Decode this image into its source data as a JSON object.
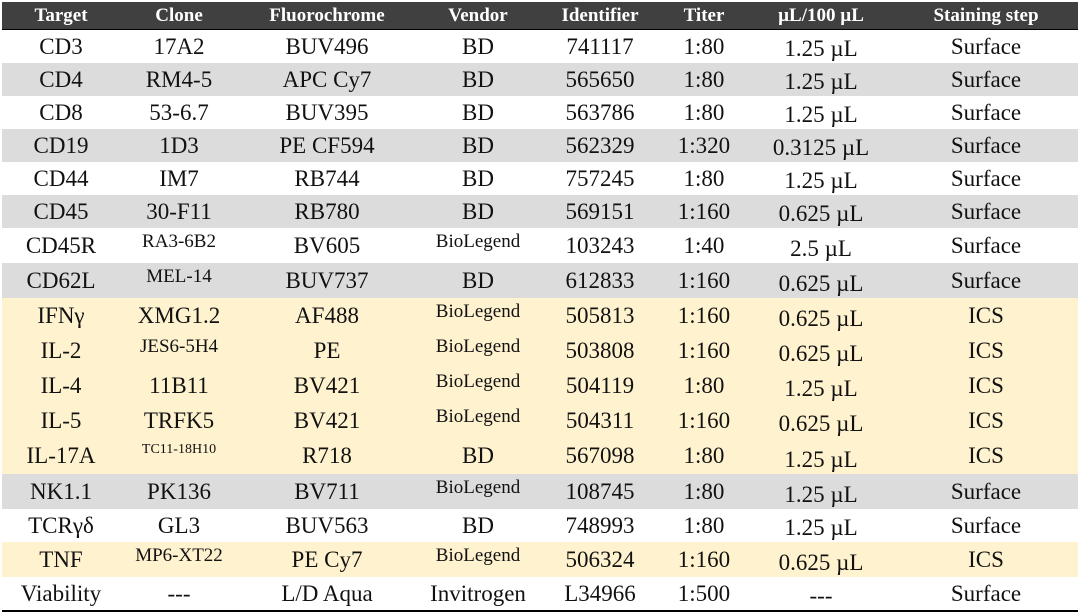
{
  "headers": [
    "Target",
    "Clone",
    "Fluorochrome",
    "Vendor",
    "Identifier",
    "Titer",
    "µL/100 µL",
    "Staining step"
  ],
  "rows": [
    {
      "bg": "white",
      "cells": [
        "CD3",
        "17A2",
        "BUV496",
        "BD",
        "741117",
        "1:80",
        "1.25 µL",
        "Surface"
      ]
    },
    {
      "bg": "grey",
      "cells": [
        "CD4",
        "RM4-5",
        "APC Cy7",
        "BD",
        "565650",
        "1:80",
        "1.25 µL",
        "Surface"
      ]
    },
    {
      "bg": "white",
      "cells": [
        "CD8",
        "53-6.7",
        "BUV395",
        "BD",
        "563786",
        "1:80",
        "1.25 µL",
        "Surface"
      ]
    },
    {
      "bg": "grey",
      "cells": [
        "CD19",
        "1D3",
        "PE CF594",
        "BD",
        "562329",
        "1:320",
        "0.3125 µL",
        "Surface"
      ]
    },
    {
      "bg": "white",
      "cells": [
        "CD44",
        "IM7",
        "RB744",
        "BD",
        "757245",
        "1:80",
        "1.25 µL",
        "Surface"
      ]
    },
    {
      "bg": "grey",
      "cells": [
        "CD45",
        "30-F11",
        "RB780",
        "BD",
        "569151",
        "1:160",
        "0.625 µL",
        "Surface"
      ]
    },
    {
      "bg": "white",
      "cells": [
        "CD45R",
        "RA3-6B2",
        "BV605",
        "BioLegend",
        "103243",
        "1:40",
        "2.5 µL",
        "Surface"
      ]
    },
    {
      "bg": "grey",
      "cells": [
        "CD62L",
        "MEL-14",
        "BUV737",
        "BD",
        "612833",
        "1:160",
        "0.625 µL",
        "Surface"
      ]
    },
    {
      "bg": "cream",
      "cells": [
        "IFNγ",
        "XMG1.2",
        "AF488",
        "BioLegend",
        "505813",
        "1:160",
        "0.625 µL",
        "ICS"
      ]
    },
    {
      "bg": "cream",
      "cells": [
        "IL-2",
        "JES6-5H4",
        "PE",
        "BioLegend",
        "503808",
        "1:160",
        "0.625 µL",
        "ICS"
      ]
    },
    {
      "bg": "cream",
      "cells": [
        "IL-4",
        "11B11",
        "BV421",
        "BioLegend",
        "504119",
        "1:80",
        "1.25 µL",
        "ICS"
      ]
    },
    {
      "bg": "cream",
      "cells": [
        "IL-5",
        "TRFK5",
        "BV421",
        "BioLegend",
        "504311",
        "1:160",
        "0.625 µL",
        "ICS"
      ]
    },
    {
      "bg": "cream",
      "cells": [
        "IL-17A",
        "TC11-18H10",
        "R718",
        "BD",
        "567098",
        "1:80",
        "1.25 µL",
        "ICS"
      ]
    },
    {
      "bg": "grey",
      "cells": [
        "NK1.1",
        "PK136",
        "BV711",
        "BioLegend",
        "108745",
        "1:80",
        "1.25 µL",
        "Surface"
      ]
    },
    {
      "bg": "white",
      "cells": [
        "TCRγδ",
        "GL3",
        "BUV563",
        "BD",
        "748993",
        "1:80",
        "1.25 µL",
        "Surface"
      ]
    },
    {
      "bg": "cream",
      "cells": [
        "TNF",
        "MP6-XT22",
        "PE Cy7",
        "BioLegend",
        "506324",
        "1:160",
        "0.625 µL",
        "ICS"
      ]
    },
    {
      "bg": "white",
      "cells": [
        "Viability",
        "---",
        "L/D Aqua",
        "Invitrogen",
        "L34966",
        "1:500",
        "---",
        "Surface"
      ]
    }
  ],
  "colors": {
    "header_bg": "#404040",
    "grey_row": "#dcdcdc",
    "cream_row": "#fff2cf",
    "white_row": "#ffffff"
  }
}
